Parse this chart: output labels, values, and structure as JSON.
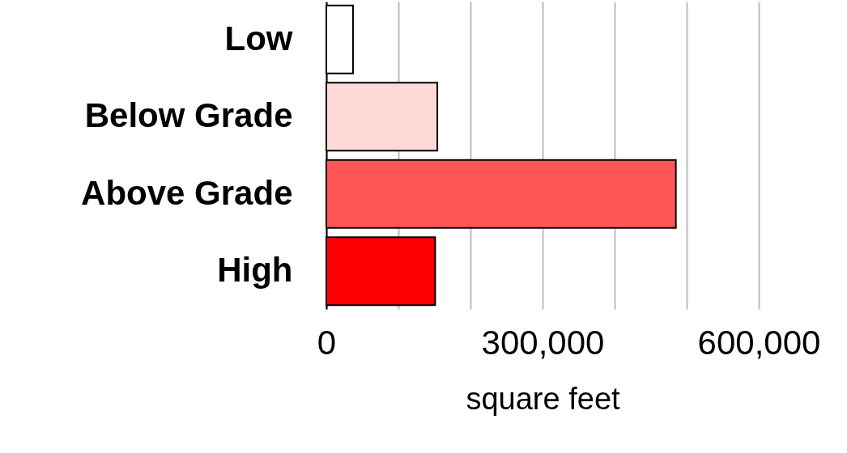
{
  "chart_data": {
    "type": "bar",
    "orientation": "horizontal",
    "categories": [
      "Low",
      "Below Grade",
      "Above Grade",
      "High"
    ],
    "values": [
      37000,
      154000,
      485000,
      151000
    ],
    "colors": [
      "#ffffff",
      "#ffd8d8",
      "#ff5555",
      "#ff0000"
    ],
    "xlim": [
      0,
      600000
    ],
    "xticks": [
      0,
      {
        "value": 100000,
        "label": null
      },
      {
        "value": 200000,
        "label": null
      },
      {
        "value": 300000,
        "label": "300,000"
      },
      {
        "value": 400000,
        "label": null
      },
      {
        "value": 500000,
        "label": null
      },
      {
        "value": 600000,
        "label": "600,000"
      }
    ],
    "xlabel": "square feet",
    "grid": "x"
  }
}
